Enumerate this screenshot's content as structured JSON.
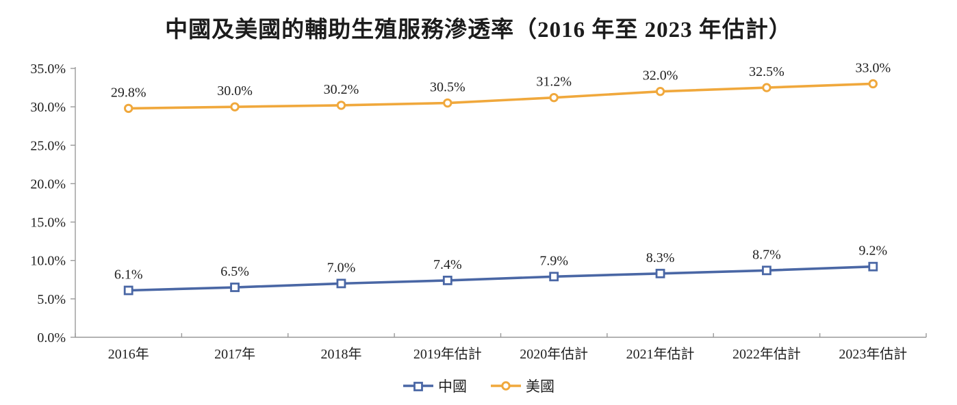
{
  "title": "中國及美國的輔助生殖服務滲透率（2016 年至 2023 年估計）",
  "colors": {
    "china_blue": "#4a67a5",
    "usa_orange": "#f0a83c",
    "axis_gray": "#999999",
    "label_text": "#1f1f1f"
  },
  "chart_data": {
    "type": "line",
    "categories": [
      "2016年",
      "2017年",
      "2018年",
      "2019年估計",
      "2020年估計",
      "2021年估計",
      "2022年估計",
      "2023年估計"
    ],
    "series": [
      {
        "name": "中國",
        "marker": "square",
        "color": "#4a67a5",
        "values": [
          6.1,
          6.5,
          7.0,
          7.4,
          7.9,
          8.3,
          8.7,
          9.2
        ],
        "labels": [
          "6.1%",
          "6.5%",
          "7.0%",
          "7.4%",
          "7.9%",
          "8.3%",
          "8.7%",
          "9.2%"
        ]
      },
      {
        "name": "美國",
        "marker": "circle",
        "color": "#f0a83c",
        "values": [
          29.8,
          30.0,
          30.2,
          30.5,
          31.2,
          32.0,
          32.5,
          33.0
        ],
        "labels": [
          "29.8%",
          "30.0%",
          "30.2%",
          "30.5%",
          "31.2%",
          "32.0%",
          "32.5%",
          "33.0%"
        ]
      }
    ],
    "ylim": [
      0,
      35
    ],
    "ytick_step": 5,
    "ytick_labels": [
      "0.0%",
      "5.0%",
      "10.0%",
      "15.0%",
      "20.0%",
      "25.0%",
      "30.0%",
      "35.0%"
    ],
    "grid": false,
    "legend_position": "bottom"
  }
}
